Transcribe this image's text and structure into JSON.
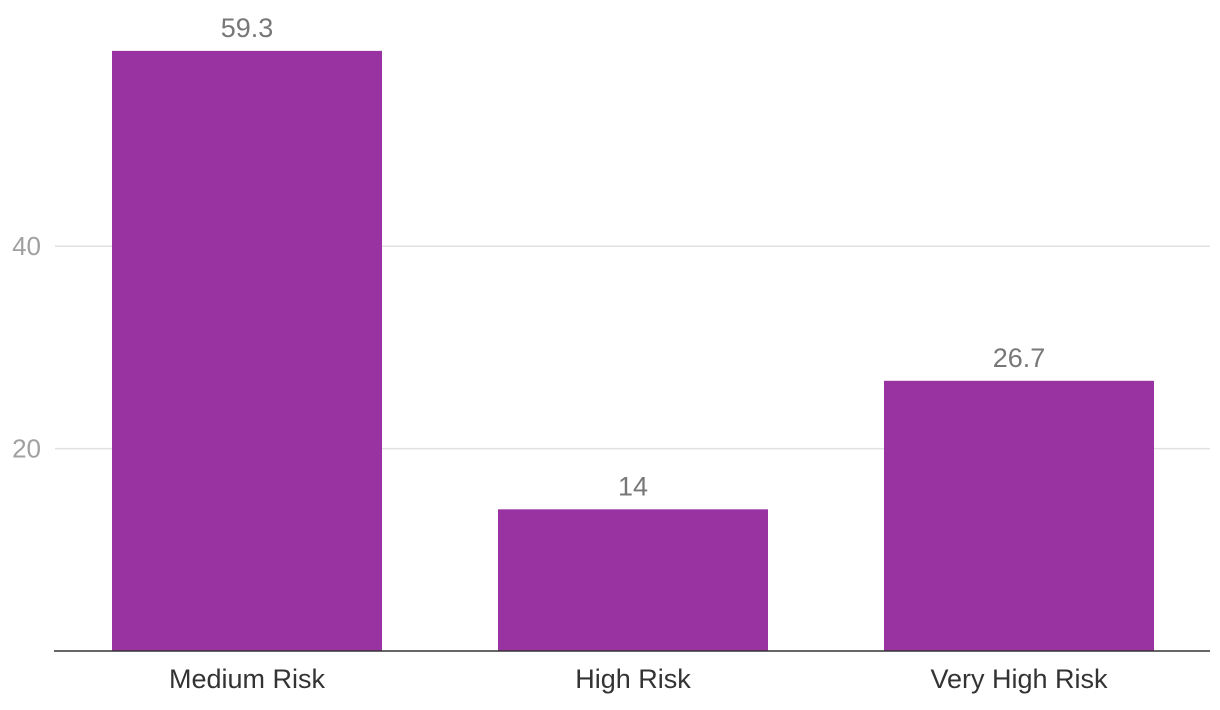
{
  "chart_data": {
    "type": "bar",
    "categories": [
      "Medium Risk",
      "High Risk",
      "Very High Risk"
    ],
    "values": [
      59.3,
      14,
      26.7
    ],
    "data_labels": [
      "59.3",
      "14",
      "26.7"
    ],
    "title": "",
    "xlabel": "",
    "ylabel": "",
    "ylim": [
      0,
      60
    ],
    "yticks": [
      20,
      40
    ],
    "ytick_labels": [
      "20",
      "40"
    ],
    "grid": true,
    "legend": "none",
    "colors": {
      "bar": "#9a33a2",
      "gridline": "#e1e1e1",
      "axis": "#333333"
    }
  }
}
